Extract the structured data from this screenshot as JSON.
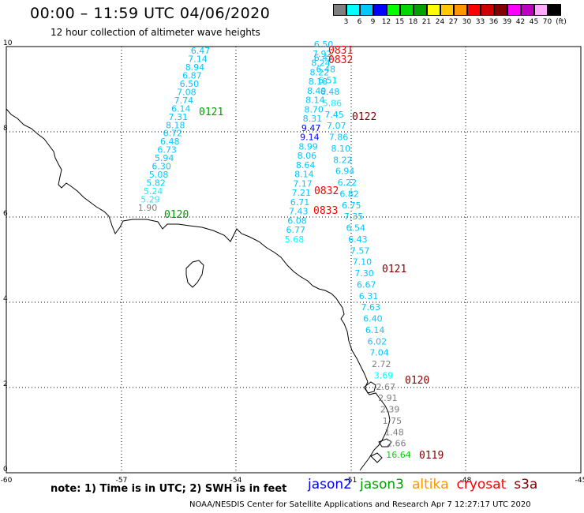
{
  "title": "00:00 – 11:59 UTC 04/06/2020",
  "subtitle": "12 hour collection of altimeter wave heights",
  "color_scale": {
    "unit": "(ft)",
    "labels": [
      "3",
      "6",
      "9",
      "12",
      "15",
      "18",
      "21",
      "24",
      "27",
      "30",
      "33",
      "36",
      "39",
      "42",
      "45",
      "70"
    ],
    "colors": [
      "#7f7f7f",
      "#00ffff",
      "#00c8ff",
      "#0000ff",
      "#00ff00",
      "#00d800",
      "#00a000",
      "#ffff00",
      "#ffc800",
      "#ff9600",
      "#ff0000",
      "#d00000",
      "#800000",
      "#ff00ff",
      "#c000c0",
      "#ffaaff",
      "#000000"
    ]
  },
  "axes": {
    "lat_labels": [
      "10",
      "8",
      "6",
      "4",
      "2",
      "0"
    ],
    "lon_labels": [
      "-60",
      "-57",
      "-54",
      "-51",
      "-48",
      "-45"
    ]
  },
  "satellites": {
    "jason2": {
      "label": "jason2",
      "color": "#0000ff"
    },
    "jason3": {
      "label": "jason3",
      "color": "#00a000"
    },
    "altika": {
      "label": "altika",
      "color": "#ff9600"
    },
    "cryosat": {
      "label": "cryosat",
      "color": "#ff0000"
    },
    "s3a": {
      "label": "s3a",
      "color": "#800000"
    }
  },
  "passes": [
    {
      "label": "0121",
      "sat": "jason3",
      "color": "#00a000"
    },
    {
      "label": "0120",
      "sat": "jason3",
      "color": "#00a000"
    },
    {
      "label": "0831",
      "sat": "cryosat",
      "color": "#ff0000"
    },
    {
      "label": "0832",
      "sat": "cryosat",
      "color": "#ff0000"
    },
    {
      "label": "0122",
      "sat": "s3a",
      "color": "#800000"
    },
    {
      "label": "0832",
      "sat": "cryosat",
      "color": "#ff0000"
    },
    {
      "label": "0833",
      "sat": "cryosat",
      "color": "#ff0000"
    },
    {
      "label": "0121",
      "sat": "s3a",
      "color": "#800000"
    },
    {
      "label": "0120",
      "sat": "s3a",
      "color": "#800000"
    },
    {
      "label": "0119",
      "sat": "s3a",
      "color": "#800000"
    }
  ],
  "tracks": [
    {
      "name": "track-left",
      "values": [
        "6.47",
        "7.14",
        "8.94",
        "6.87",
        "6.50",
        "7.08",
        "7.74",
        "6.14",
        "7.31",
        "8.18",
        "6.72",
        "6.48",
        "6.73",
        "5.94",
        "6.30",
        "5.08",
        "5.82",
        "5.24",
        "5.29",
        "1.90"
      ],
      "colors": [
        "#00c8ff",
        "#00c8ff",
        "#00c8ff",
        "#00c8ff",
        "#00c8ff",
        "#00c8ff",
        "#00c8ff",
        "#00c8ff",
        "#00c8ff",
        "#00c8ff",
        "#00c8ff",
        "#00c8ff",
        "#00c8ff",
        "#00c8ff",
        "#00c8ff",
        "#00c8ff",
        "#00c8ff",
        "#00ffff",
        "#00ffff",
        "#7f7f7f"
      ]
    },
    {
      "name": "track-mid",
      "values": [
        "6.50",
        "7.92",
        "8.24",
        "8.22",
        "8.18",
        "8.49",
        "8.14",
        "8.70",
        "8.31",
        "9.47",
        "9.14",
        "8.99",
        "8.06",
        "8.64",
        "8.14",
        "7.17",
        "7.21",
        "6.71",
        "7.43",
        "6.08",
        "6.77",
        "5.68"
      ],
      "colors": [
        "#00c8ff",
        "#00c8ff",
        "#00c8ff",
        "#00c8ff",
        "#00c8ff",
        "#00c8ff",
        "#00c8ff",
        "#00c8ff",
        "#00c8ff",
        "#0000ff",
        "#0000ff",
        "#00c8ff",
        "#00c8ff",
        "#00c8ff",
        "#00c8ff",
        "#00c8ff",
        "#00c8ff",
        "#00c8ff",
        "#00c8ff",
        "#00c8ff",
        "#00c8ff",
        "#00ffff"
      ]
    },
    {
      "name": "track-right",
      "values": [
        "6.47",
        "6.48",
        "6.51",
        "6.48",
        "5.86",
        "7.45",
        "7.07",
        "7.86",
        "8.10",
        "8.22",
        "6.94",
        "6.22",
        "6.82",
        "6.75",
        "7.35",
        "6.54",
        "6.43",
        "7.57",
        "7.10",
        "7.30",
        "6.67",
        "6.31",
        "7.63",
        "6.40",
        "6.14",
        "6.02",
        "7.04",
        "2.72",
        "3.69",
        "2.67",
        "2.91",
        "2.39",
        "1.75",
        "1.48",
        "2.66",
        "16.64"
      ],
      "colors": [
        "#00c8ff",
        "#00c8ff",
        "#00c8ff",
        "#00c8ff",
        "#00ffff",
        "#00c8ff",
        "#00c8ff",
        "#00c8ff",
        "#00c8ff",
        "#00c8ff",
        "#00c8ff",
        "#00c8ff",
        "#00c8ff",
        "#00c8ff",
        "#00c8ff",
        "#00c8ff",
        "#00c8ff",
        "#00c8ff",
        "#00c8ff",
        "#00c8ff",
        "#00c8ff",
        "#00c8ff",
        "#00c8ff",
        "#00c8ff",
        "#00c8ff",
        "#00c8ff",
        "#00c8ff",
        "#7f7f7f",
        "#00ffff",
        "#7f7f7f",
        "#7f7f7f",
        "#7f7f7f",
        "#7f7f7f",
        "#7f7f7f",
        "#7f7f7f",
        "#00d800"
      ]
    }
  ],
  "note": "note: 1) Time is in UTC; 2) SWH is in feet",
  "credit": "NOAA/NESDIS Center for Satellite Applications and Research   Apr  7 12:27:17 UTC 2020"
}
